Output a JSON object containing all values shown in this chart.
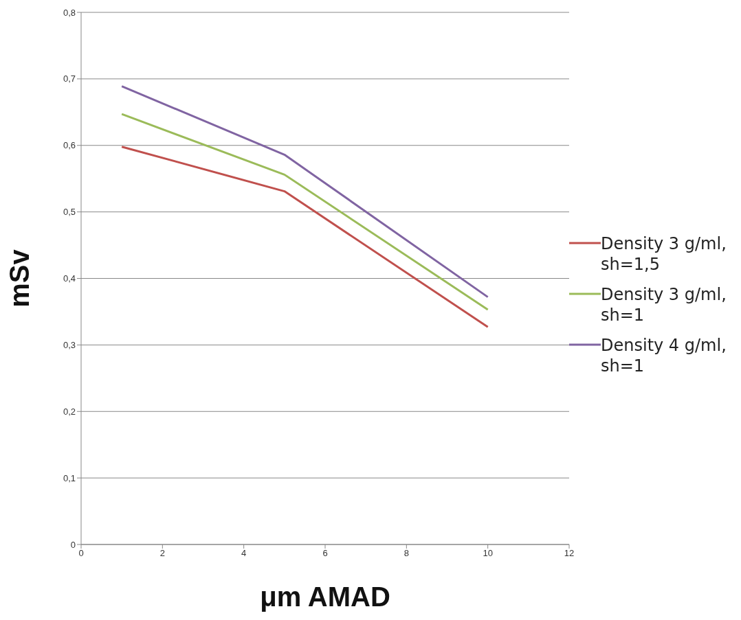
{
  "chart_data": {
    "type": "line",
    "xlabel": "μm AMAD",
    "ylabel": "mSv",
    "x": [
      1,
      5,
      10
    ],
    "series": [
      {
        "name": "Density 3 g/ml, sh=1,5",
        "color": "#c0504d",
        "values": [
          0.598,
          0.531,
          0.327
        ]
      },
      {
        "name": "Density 3 g/ml, sh=1",
        "color": "#9bbb59",
        "values": [
          0.647,
          0.556,
          0.353
        ]
      },
      {
        "name": "Density 4 g/ml, sh=1",
        "color": "#8064a2",
        "values": [
          0.689,
          0.586,
          0.372
        ]
      }
    ],
    "xlim": [
      0,
      12
    ],
    "xticks": [
      0,
      2,
      4,
      6,
      8,
      10,
      12
    ],
    "ylim": [
      0,
      0.8
    ],
    "yticks": [
      0,
      {
        "value": 0.1,
        "label": "0,1"
      },
      {
        "value": 0.2,
        "label": "0,2"
      },
      {
        "value": 0.3,
        "label": "0,3"
      },
      {
        "value": 0.4,
        "label": "0,4"
      },
      {
        "value": 0.5,
        "label": "0,5"
      },
      {
        "value": 0.6,
        "label": "0,6"
      },
      {
        "value": 0.7,
        "label": "0,7"
      },
      {
        "value": 0.8,
        "label": "0,8"
      }
    ],
    "grid": "y",
    "legend": "right",
    "marker": "none",
    "line_style": "solid"
  }
}
